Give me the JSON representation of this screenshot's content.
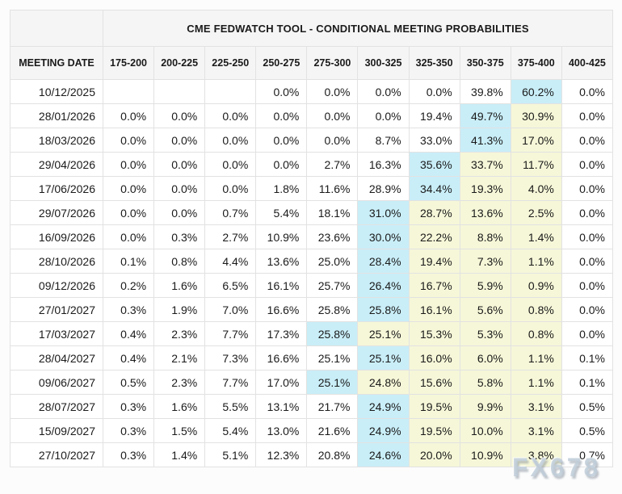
{
  "chart_data": {
    "type": "table",
    "title": "CME FEDWATCH TOOL - CONDITIONAL MEETING PROBABILITIES",
    "columns": [
      "MEETING DATE",
      "175-200",
      "200-225",
      "225-250",
      "250-275",
      "275-300",
      "300-325",
      "325-350",
      "350-375",
      "375-400",
      "400-425"
    ],
    "rows": [
      {
        "date": "10/12/2025",
        "values": [
          "",
          "",
          "",
          "0.0%",
          "0.0%",
          "0.0%",
          "0.0%",
          "39.8%",
          "60.2%",
          "0.0%"
        ],
        "cell_highlights": [
          "",
          "",
          "",
          "",
          "",
          "",
          "",
          "",
          "cyan",
          ""
        ]
      },
      {
        "date": "28/01/2026",
        "values": [
          "0.0%",
          "0.0%",
          "0.0%",
          "0.0%",
          "0.0%",
          "0.0%",
          "19.4%",
          "49.7%",
          "30.9%",
          "0.0%"
        ],
        "cell_highlights": [
          "",
          "",
          "",
          "",
          "",
          "",
          "",
          "cyan",
          "yellow",
          ""
        ]
      },
      {
        "date": "18/03/2026",
        "values": [
          "0.0%",
          "0.0%",
          "0.0%",
          "0.0%",
          "0.0%",
          "8.7%",
          "33.0%",
          "41.3%",
          "17.0%",
          "0.0%"
        ],
        "cell_highlights": [
          "",
          "",
          "",
          "",
          "",
          "",
          "",
          "cyan",
          "yellow",
          ""
        ]
      },
      {
        "date": "29/04/2026",
        "values": [
          "0.0%",
          "0.0%",
          "0.0%",
          "0.0%",
          "2.7%",
          "16.3%",
          "35.6%",
          "33.7%",
          "11.7%",
          "0.0%"
        ],
        "cell_highlights": [
          "",
          "",
          "",
          "",
          "",
          "",
          "cyan",
          "yellow",
          "yellow",
          ""
        ]
      },
      {
        "date": "17/06/2026",
        "values": [
          "0.0%",
          "0.0%",
          "0.0%",
          "1.8%",
          "11.6%",
          "28.9%",
          "34.4%",
          "19.3%",
          "4.0%",
          "0.0%"
        ],
        "cell_highlights": [
          "",
          "",
          "",
          "",
          "",
          "",
          "cyan",
          "yellow",
          "yellow",
          ""
        ]
      },
      {
        "date": "29/07/2026",
        "values": [
          "0.0%",
          "0.0%",
          "0.7%",
          "5.4%",
          "18.1%",
          "31.0%",
          "28.7%",
          "13.6%",
          "2.5%",
          "0.0%"
        ],
        "cell_highlights": [
          "",
          "",
          "",
          "",
          "",
          "cyan",
          "yellow",
          "yellow",
          "yellow",
          ""
        ]
      },
      {
        "date": "16/09/2026",
        "values": [
          "0.0%",
          "0.3%",
          "2.7%",
          "10.9%",
          "23.6%",
          "30.0%",
          "22.2%",
          "8.8%",
          "1.4%",
          "0.0%"
        ],
        "cell_highlights": [
          "",
          "",
          "",
          "",
          "",
          "cyan",
          "yellow",
          "yellow",
          "yellow",
          ""
        ]
      },
      {
        "date": "28/10/2026",
        "values": [
          "0.1%",
          "0.8%",
          "4.4%",
          "13.6%",
          "25.0%",
          "28.4%",
          "19.4%",
          "7.3%",
          "1.1%",
          "0.0%"
        ],
        "cell_highlights": [
          "",
          "",
          "",
          "",
          "",
          "cyan",
          "yellow",
          "yellow",
          "yellow",
          ""
        ]
      },
      {
        "date": "09/12/2026",
        "values": [
          "0.2%",
          "1.6%",
          "6.5%",
          "16.1%",
          "25.7%",
          "26.4%",
          "16.7%",
          "5.9%",
          "0.9%",
          "0.0%"
        ],
        "cell_highlights": [
          "",
          "",
          "",
          "",
          "",
          "cyan",
          "yellow",
          "yellow",
          "yellow",
          ""
        ]
      },
      {
        "date": "27/01/2027",
        "values": [
          "0.3%",
          "1.9%",
          "7.0%",
          "16.6%",
          "25.8%",
          "25.8%",
          "16.1%",
          "5.6%",
          "0.8%",
          "0.0%"
        ],
        "cell_highlights": [
          "",
          "",
          "",
          "",
          "",
          "cyan",
          "yellow",
          "yellow",
          "yellow",
          ""
        ]
      },
      {
        "date": "17/03/2027",
        "values": [
          "0.4%",
          "2.3%",
          "7.7%",
          "17.3%",
          "25.8%",
          "25.1%",
          "15.3%",
          "5.3%",
          "0.8%",
          "0.0%"
        ],
        "cell_highlights": [
          "",
          "",
          "",
          "",
          "cyan",
          "yellow",
          "yellow",
          "yellow",
          "yellow",
          ""
        ]
      },
      {
        "date": "28/04/2027",
        "values": [
          "0.4%",
          "2.1%",
          "7.3%",
          "16.6%",
          "25.1%",
          "25.1%",
          "16.0%",
          "6.0%",
          "1.1%",
          "0.1%"
        ],
        "cell_highlights": [
          "",
          "",
          "",
          "",
          "",
          "cyan",
          "yellow",
          "yellow",
          "yellow",
          ""
        ]
      },
      {
        "date": "09/06/2027",
        "values": [
          "0.5%",
          "2.3%",
          "7.7%",
          "17.0%",
          "25.1%",
          "24.8%",
          "15.6%",
          "5.8%",
          "1.1%",
          "0.1%"
        ],
        "cell_highlights": [
          "",
          "",
          "",
          "",
          "cyan",
          "yellow",
          "yellow",
          "yellow",
          "yellow",
          ""
        ]
      },
      {
        "date": "28/07/2027",
        "values": [
          "0.3%",
          "1.6%",
          "5.5%",
          "13.1%",
          "21.7%",
          "24.9%",
          "19.5%",
          "9.9%",
          "3.1%",
          "0.5%"
        ],
        "cell_highlights": [
          "",
          "",
          "",
          "",
          "",
          "cyan",
          "yellow",
          "yellow",
          "yellow",
          ""
        ]
      },
      {
        "date": "15/09/2027",
        "values": [
          "0.3%",
          "1.5%",
          "5.4%",
          "13.0%",
          "21.6%",
          "24.9%",
          "19.5%",
          "10.0%",
          "3.1%",
          "0.5%"
        ],
        "cell_highlights": [
          "",
          "",
          "",
          "",
          "",
          "cyan",
          "yellow",
          "yellow",
          "yellow",
          ""
        ]
      },
      {
        "date": "27/10/2027",
        "values": [
          "0.3%",
          "1.4%",
          "5.1%",
          "12.3%",
          "20.8%",
          "24.6%",
          "20.0%",
          "10.9%",
          "3.8%",
          "0.7%"
        ],
        "cell_highlights": [
          "",
          "",
          "",
          "",
          "",
          "cyan",
          "yellow",
          "yellow",
          "yellow",
          ""
        ]
      }
    ]
  },
  "colors": {
    "highlight_cyan": "#c9eef8",
    "highlight_yellow": "#f6f7d8",
    "header_bg": "#f5f5f5",
    "border": "#e2e2e2",
    "text": "#1a1a1a",
    "watermark": "#becbd6"
  },
  "watermark": {
    "text": "FX678"
  }
}
